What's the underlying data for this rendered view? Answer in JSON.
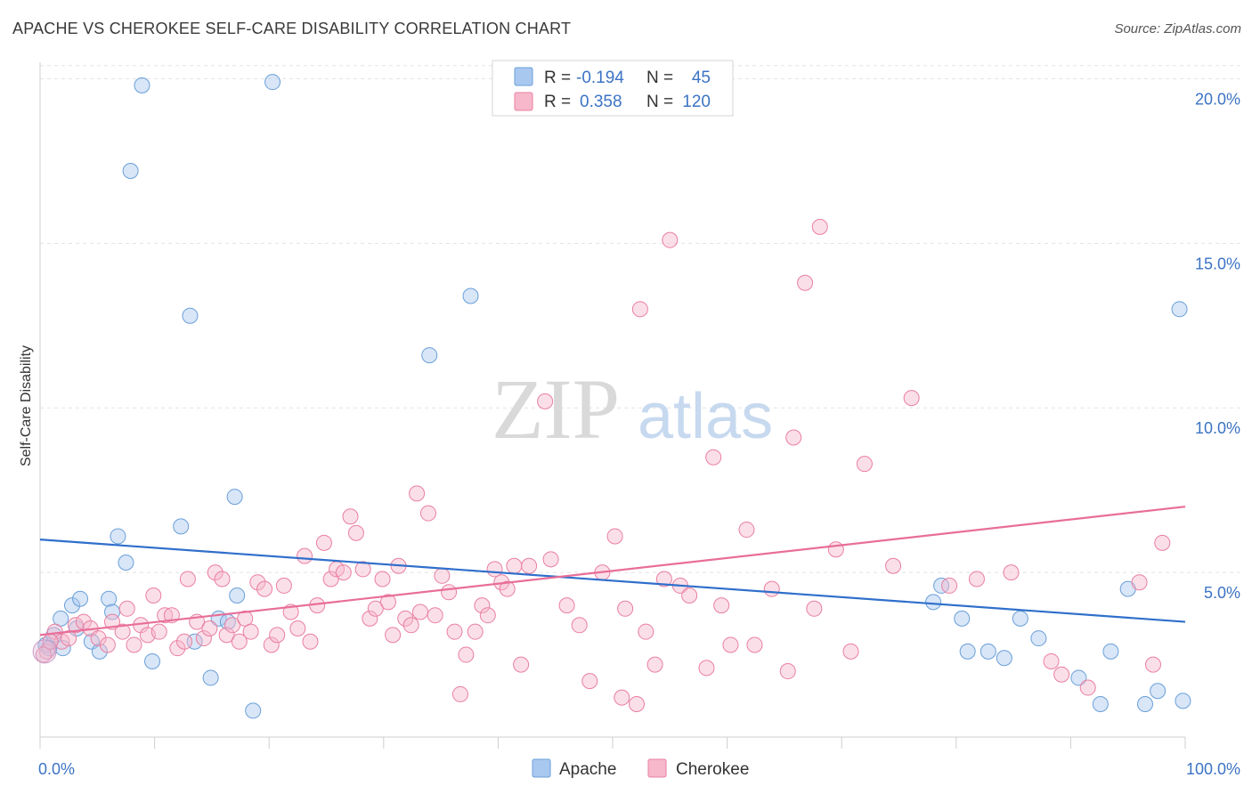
{
  "header": {
    "title": "APACHE VS CHEROKEE SELF-CARE DISABILITY CORRELATION CHART",
    "source": "Source: ZipAtlas.com"
  },
  "watermark": {
    "zip": "ZIP",
    "atlas": "atlas"
  },
  "legend_top": {
    "rows": [
      {
        "r_label": "R =",
        "r_value": "-0.194",
        "n_label": "N =",
        "n_value": "45",
        "color": "#a9c8f0"
      },
      {
        "r_label": "R =",
        "r_value": "0.358",
        "n_label": "N =",
        "n_value": "120",
        "color": "#f7b8cc"
      }
    ]
  },
  "legend_bottom": {
    "items": [
      "Apache",
      "Cherokee"
    ]
  },
  "chart_data": {
    "type": "scatter",
    "title": "APACHE VS CHEROKEE SELF-CARE DISABILITY CORRELATION CHART",
    "xlabel": "",
    "ylabel": "Self-Care Disability",
    "xlim": [
      0,
      100
    ],
    "ylim": [
      0,
      20.5
    ],
    "x_tick_labels": [
      "0.0%",
      "100.0%"
    ],
    "y_ticks": [
      5,
      10,
      15,
      20
    ],
    "y_tick_labels": [
      "5.0%",
      "10.0%",
      "15.0%",
      "20.0%"
    ],
    "grid": true,
    "legend_position": "top-center",
    "series": [
      {
        "name": "Apache",
        "color": "#a9c8f0",
        "stroke": "#6a9fd8",
        "trend_color": "#2f6fcb",
        "trend": [
          [
            0,
            6.0
          ],
          [
            100,
            3.5
          ]
        ],
        "points": [
          [
            0.5,
            2.8
          ],
          [
            1.2,
            3.1
          ],
          [
            1.8,
            3.6
          ],
          [
            2.8,
            4.0
          ],
          [
            3.5,
            4.2
          ],
          [
            3.2,
            3.3
          ],
          [
            4.5,
            2.9
          ],
          [
            5.2,
            2.6
          ],
          [
            6.0,
            4.2
          ],
          [
            6.3,
            3.8
          ],
          [
            6.8,
            6.1
          ],
          [
            7.5,
            5.3
          ],
          [
            7.9,
            17.2
          ],
          [
            8.9,
            19.8
          ],
          [
            9.8,
            2.3
          ],
          [
            12.3,
            6.4
          ],
          [
            13.1,
            12.8
          ],
          [
            13.5,
            2.9
          ],
          [
            14.9,
            1.8
          ],
          [
            15.6,
            3.6
          ],
          [
            16.4,
            3.5
          ],
          [
            17.0,
            7.3
          ],
          [
            17.2,
            4.3
          ],
          [
            18.6,
            0.8
          ],
          [
            20.3,
            19.9
          ],
          [
            34.0,
            11.6
          ],
          [
            37.6,
            13.4
          ],
          [
            78.0,
            4.1
          ],
          [
            78.7,
            4.6
          ],
          [
            81.0,
            2.6
          ],
          [
            82.8,
            2.6
          ],
          [
            84.2,
            2.4
          ],
          [
            80.5,
            3.6
          ],
          [
            85.6,
            3.6
          ],
          [
            87.2,
            3.0
          ],
          [
            90.7,
            1.8
          ],
          [
            92.6,
            1.0
          ],
          [
            93.5,
            2.6
          ],
          [
            95.0,
            4.5
          ],
          [
            96.5,
            1.0
          ],
          [
            97.6,
            1.4
          ],
          [
            99.8,
            1.1
          ],
          [
            99.5,
            13.0
          ],
          [
            2.0,
            2.7
          ],
          [
            0.8,
            2.7
          ]
        ]
      },
      {
        "name": "Cherokee",
        "color": "#f7b8cc",
        "stroke": "#e97fa1",
        "trend_color": "#e86e98",
        "trend": [
          [
            0,
            3.1
          ],
          [
            100,
            7.0
          ]
        ],
        "points": [
          [
            0.6,
            2.6
          ],
          [
            1.3,
            3.2
          ],
          [
            1.9,
            2.9
          ],
          [
            2.5,
            3.0
          ],
          [
            3.1,
            3.4
          ],
          [
            3.8,
            3.5
          ],
          [
            4.4,
            3.3
          ],
          [
            5.1,
            3.0
          ],
          [
            5.9,
            2.8
          ],
          [
            6.3,
            3.5
          ],
          [
            7.2,
            3.2
          ],
          [
            7.6,
            3.9
          ],
          [
            8.2,
            2.8
          ],
          [
            8.8,
            3.4
          ],
          [
            9.4,
            3.1
          ],
          [
            9.9,
            4.3
          ],
          [
            10.4,
            3.2
          ],
          [
            10.9,
            3.7
          ],
          [
            11.5,
            3.7
          ],
          [
            12.0,
            2.7
          ],
          [
            12.6,
            2.9
          ],
          [
            12.9,
            4.8
          ],
          [
            13.7,
            3.5
          ],
          [
            14.3,
            3.0
          ],
          [
            14.8,
            3.3
          ],
          [
            15.3,
            5.0
          ],
          [
            15.9,
            4.8
          ],
          [
            16.3,
            3.1
          ],
          [
            16.8,
            3.4
          ],
          [
            17.4,
            2.9
          ],
          [
            17.9,
            3.6
          ],
          [
            18.4,
            3.2
          ],
          [
            19.0,
            4.7
          ],
          [
            19.6,
            4.5
          ],
          [
            20.2,
            2.8
          ],
          [
            20.7,
            3.1
          ],
          [
            21.3,
            4.6
          ],
          [
            21.9,
            3.8
          ],
          [
            22.5,
            3.3
          ],
          [
            23.1,
            5.5
          ],
          [
            23.6,
            2.9
          ],
          [
            24.2,
            4.0
          ],
          [
            24.8,
            5.9
          ],
          [
            25.4,
            4.8
          ],
          [
            25.9,
            5.1
          ],
          [
            26.5,
            5.0
          ],
          [
            27.1,
            6.7
          ],
          [
            27.6,
            6.2
          ],
          [
            28.2,
            5.1
          ],
          [
            28.8,
            3.6
          ],
          [
            29.3,
            3.9
          ],
          [
            29.9,
            4.8
          ],
          [
            30.4,
            4.1
          ],
          [
            30.8,
            3.1
          ],
          [
            31.3,
            5.2
          ],
          [
            31.9,
            3.6
          ],
          [
            32.4,
            3.4
          ],
          [
            32.9,
            7.4
          ],
          [
            33.2,
            3.8
          ],
          [
            33.9,
            6.8
          ],
          [
            34.5,
            3.7
          ],
          [
            35.1,
            4.9
          ],
          [
            35.7,
            4.4
          ],
          [
            36.2,
            3.2
          ],
          [
            36.7,
            1.3
          ],
          [
            37.2,
            2.5
          ],
          [
            38.0,
            3.2
          ],
          [
            38.6,
            4.0
          ],
          [
            39.1,
            3.7
          ],
          [
            39.7,
            5.1
          ],
          [
            40.3,
            4.7
          ],
          [
            40.8,
            4.5
          ],
          [
            41.4,
            5.2
          ],
          [
            42.0,
            2.2
          ],
          [
            42.7,
            5.2
          ],
          [
            44.1,
            10.2
          ],
          [
            44.6,
            5.4
          ],
          [
            46.0,
            4.0
          ],
          [
            47.1,
            3.4
          ],
          [
            48.0,
            1.7
          ],
          [
            49.1,
            5.0
          ],
          [
            50.2,
            6.1
          ],
          [
            50.8,
            1.2
          ],
          [
            51.1,
            3.9
          ],
          [
            52.1,
            1.0
          ],
          [
            52.4,
            13.0
          ],
          [
            52.9,
            3.2
          ],
          [
            53.7,
            2.2
          ],
          [
            54.5,
            4.8
          ],
          [
            55.0,
            15.1
          ],
          [
            55.9,
            4.6
          ],
          [
            56.7,
            4.3
          ],
          [
            58.2,
            2.1
          ],
          [
            58.8,
            8.5
          ],
          [
            59.5,
            4.0
          ],
          [
            60.3,
            2.8
          ],
          [
            61.7,
            6.3
          ],
          [
            62.4,
            2.8
          ],
          [
            63.9,
            4.5
          ],
          [
            65.3,
            2.0
          ],
          [
            65.8,
            9.1
          ],
          [
            66.8,
            13.8
          ],
          [
            67.6,
            3.9
          ],
          [
            68.1,
            15.5
          ],
          [
            69.5,
            5.7
          ],
          [
            70.8,
            2.6
          ],
          [
            72.0,
            8.3
          ],
          [
            74.5,
            5.2
          ],
          [
            76.1,
            10.3
          ],
          [
            79.4,
            4.6
          ],
          [
            81.8,
            4.8
          ],
          [
            84.8,
            5.0
          ],
          [
            88.3,
            2.3
          ],
          [
            89.2,
            1.9
          ],
          [
            91.5,
            1.5
          ],
          [
            96.0,
            4.7
          ],
          [
            97.2,
            2.2
          ],
          [
            98.0,
            5.9
          ],
          [
            0.3,
            2.5
          ],
          [
            0.9,
            2.9
          ]
        ]
      }
    ]
  }
}
